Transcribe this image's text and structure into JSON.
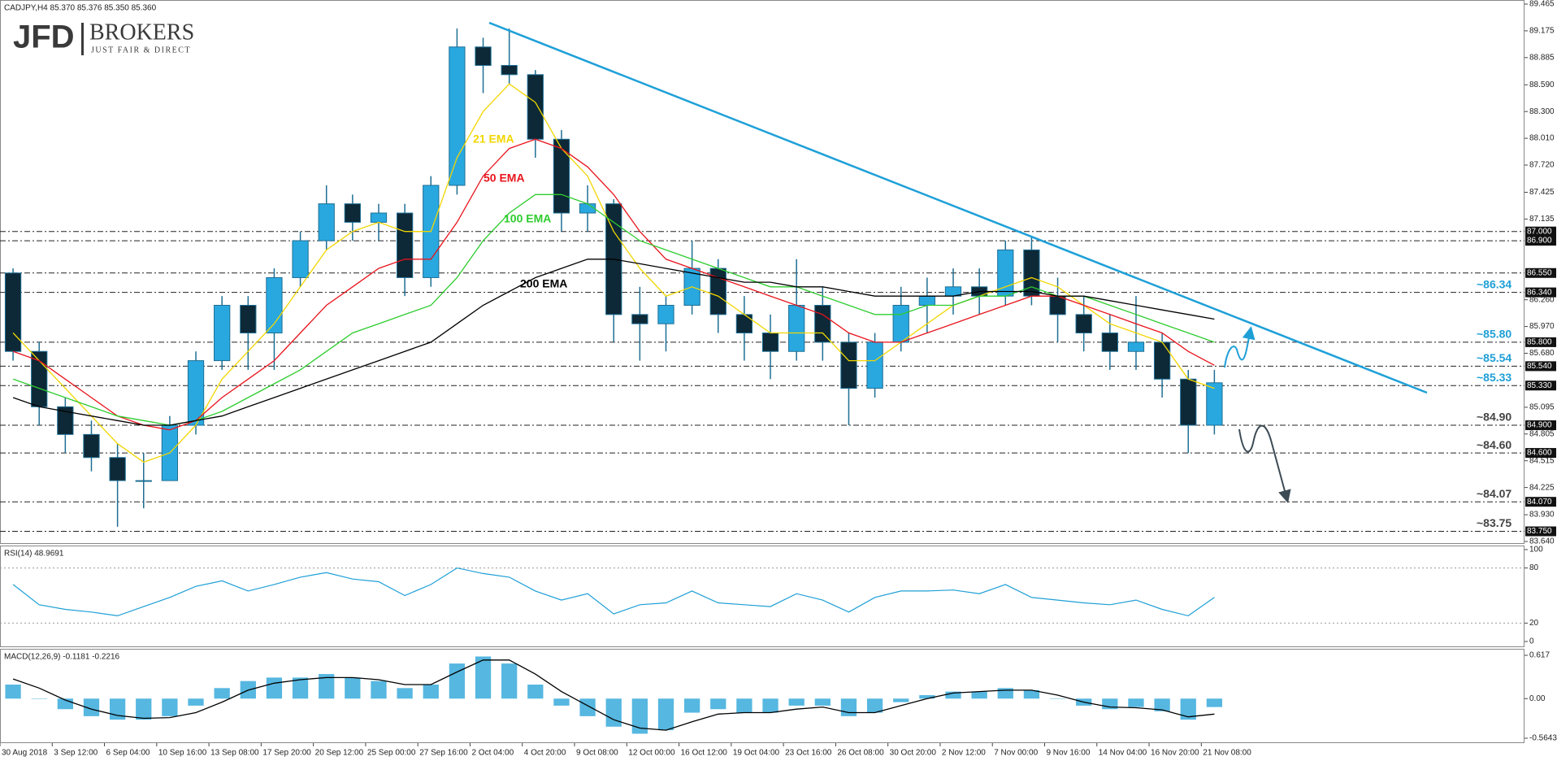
{
  "header": {
    "logo": "JFD",
    "logo_right": "BROKERS",
    "tagline": "JUST FAIR & DIRECT"
  },
  "chart_data": [
    {
      "type": "candlestick",
      "title": "CADJPY,H4  85.370 85.376 85.350 85.360",
      "x": [
        4,
        12,
        20,
        28,
        36,
        44,
        52,
        60,
        68,
        76,
        84,
        92,
        100,
        108,
        116,
        124,
        132,
        140,
        148,
        156,
        164,
        172,
        180,
        188,
        196,
        204,
        212,
        220,
        228,
        236,
        244,
        252,
        260,
        268,
        276,
        284,
        292,
        300,
        308,
        316,
        324,
        332,
        340,
        348,
        356,
        364,
        372
      ],
      "xlim": [
        0,
        467
      ],
      "open": [
        86.55,
        85.7,
        85.1,
        84.8,
        84.55,
        84.3,
        84.3,
        84.9,
        85.6,
        86.2,
        85.9,
        86.5,
        86.9,
        87.3,
        87.1,
        87.2,
        86.5,
        87.5,
        89.0,
        88.8,
        88.7,
        88.0,
        87.2,
        87.3,
        86.1,
        86.0,
        86.2,
        86.6,
        86.1,
        85.9,
        85.7,
        86.2,
        85.8,
        85.3,
        85.8,
        86.2,
        86.3,
        86.4,
        86.3,
        86.8,
        86.3,
        86.1,
        85.9,
        85.7,
        85.8,
        85.4,
        84.9
      ],
      "high": [
        86.6,
        85.8,
        85.2,
        84.95,
        84.7,
        84.6,
        85.0,
        85.7,
        86.3,
        86.3,
        86.6,
        87.0,
        87.5,
        87.4,
        87.3,
        87.3,
        87.6,
        89.2,
        89.1,
        89.2,
        88.75,
        88.1,
        87.5,
        87.35,
        86.4,
        86.3,
        86.9,
        86.7,
        86.3,
        86.1,
        86.7,
        86.4,
        85.9,
        85.9,
        86.4,
        86.5,
        86.6,
        86.6,
        86.9,
        86.95,
        86.5,
        86.3,
        86.1,
        86.3,
        85.9,
        85.5,
        85.5
      ],
      "low": [
        85.6,
        84.9,
        84.6,
        84.4,
        83.8,
        84.0,
        84.3,
        84.8,
        85.5,
        85.5,
        85.5,
        86.4,
        86.8,
        86.9,
        86.9,
        86.3,
        86.4,
        87.4,
        88.5,
        88.6,
        87.8,
        87.0,
        87.0,
        85.8,
        85.6,
        85.7,
        86.1,
        85.9,
        85.6,
        85.4,
        85.6,
        85.6,
        84.9,
        85.2,
        85.7,
        85.9,
        86.1,
        86.1,
        86.2,
        86.2,
        85.8,
        85.7,
        85.5,
        85.5,
        85.2,
        84.6,
        84.8
      ],
      "close": [
        85.7,
        85.1,
        84.8,
        84.55,
        84.3,
        84.3,
        84.9,
        85.6,
        86.2,
        85.9,
        86.5,
        86.9,
        87.3,
        87.1,
        87.2,
        86.5,
        87.5,
        89.0,
        88.8,
        88.7,
        88.0,
        87.2,
        87.3,
        86.1,
        86.0,
        86.2,
        86.6,
        86.1,
        85.9,
        85.7,
        86.2,
        85.8,
        85.3,
        85.8,
        86.2,
        86.3,
        86.4,
        86.3,
        86.8,
        86.3,
        86.1,
        85.9,
        85.7,
        85.8,
        85.4,
        84.9,
        85.36
      ],
      "up_color": "#29a8e0",
      "down_color": "#0d2836",
      "series": [
        {
          "name": "21 EMA",
          "color": "#f2d600",
          "values": [
            85.9,
            85.6,
            85.3,
            85.0,
            84.7,
            84.5,
            84.6,
            84.9,
            85.4,
            85.7,
            86.0,
            86.4,
            86.8,
            87.0,
            87.1,
            87.0,
            87.0,
            87.8,
            88.3,
            88.6,
            88.4,
            87.9,
            87.6,
            87.0,
            86.6,
            86.3,
            86.4,
            86.3,
            86.1,
            85.9,
            85.9,
            85.9,
            85.6,
            85.6,
            85.8,
            86.0,
            86.2,
            86.3,
            86.4,
            86.5,
            86.4,
            86.2,
            86.0,
            85.9,
            85.8,
            85.4,
            85.3
          ]
        },
        {
          "name": "50 EMA",
          "color": "#e8141c",
          "values": [
            85.7,
            85.6,
            85.4,
            85.2,
            85.0,
            84.9,
            84.85,
            84.95,
            85.2,
            85.4,
            85.6,
            85.9,
            86.2,
            86.4,
            86.6,
            86.7,
            86.7,
            87.1,
            87.6,
            87.9,
            88.0,
            87.9,
            87.7,
            87.4,
            87.0,
            86.7,
            86.6,
            86.5,
            86.4,
            86.3,
            86.2,
            86.1,
            85.9,
            85.8,
            85.8,
            85.9,
            86.0,
            86.1,
            86.2,
            86.3,
            86.3,
            86.2,
            86.1,
            86.0,
            85.9,
            85.7,
            85.55
          ]
        },
        {
          "name": "100 EMA",
          "color": "#2ecc2e",
          "values": [
            85.4,
            85.3,
            85.2,
            85.1,
            85.0,
            84.95,
            84.9,
            84.95,
            85.05,
            85.2,
            85.35,
            85.5,
            85.7,
            85.9,
            86.0,
            86.1,
            86.2,
            86.5,
            86.9,
            87.2,
            87.4,
            87.4,
            87.3,
            87.1,
            86.9,
            86.8,
            86.7,
            86.6,
            86.5,
            86.4,
            86.4,
            86.3,
            86.2,
            86.1,
            86.1,
            86.2,
            86.2,
            86.3,
            86.3,
            86.4,
            86.3,
            86.3,
            86.2,
            86.1,
            86.0,
            85.9,
            85.8
          ]
        },
        {
          "name": "200 EMA",
          "color": "#000000",
          "values": [
            85.2,
            85.1,
            85.05,
            85.0,
            84.95,
            84.9,
            84.9,
            84.95,
            85.0,
            85.1,
            85.2,
            85.3,
            85.4,
            85.5,
            85.6,
            85.7,
            85.8,
            86.0,
            86.2,
            86.35,
            86.5,
            86.6,
            86.7,
            86.7,
            86.65,
            86.6,
            86.55,
            86.5,
            86.45,
            86.45,
            86.4,
            86.4,
            86.35,
            86.3,
            86.3,
            86.3,
            86.3,
            86.35,
            86.35,
            86.35,
            86.3,
            86.3,
            86.25,
            86.2,
            86.15,
            86.1,
            86.05
          ]
        }
      ],
      "ylim": [
        83.64,
        89.465
      ],
      "yticks": [
        {
          "value": 89.465,
          "label": "89.465"
        },
        {
          "value": 89.175,
          "label": "89.175"
        },
        {
          "value": 88.885,
          "label": "88.885"
        },
        {
          "value": 88.59,
          "label": "88.590"
        },
        {
          "value": 88.3,
          "label": "88.300"
        },
        {
          "value": 88.01,
          "label": "88.010"
        },
        {
          "value": 87.72,
          "label": "87.720"
        },
        {
          "value": 87.425,
          "label": "87.425"
        },
        {
          "value": 87.135,
          "label": "87.135"
        },
        {
          "value": 86.26,
          "label": "86.260"
        },
        {
          "value": 85.97,
          "label": "85.970"
        },
        {
          "value": 85.68,
          "label": "85.680"
        },
        {
          "value": 85.095,
          "label": "85.095"
        },
        {
          "value": 84.805,
          "label": "84.805"
        },
        {
          "value": 84.515,
          "label": "84.515"
        },
        {
          "value": 84.225,
          "label": "84.225"
        },
        {
          "value": 83.93,
          "label": "83.930"
        },
        {
          "value": 83.64,
          "label": "83.640"
        }
      ],
      "levels": [
        {
          "value": 87.0,
          "label": "87.000"
        },
        {
          "value": 86.9,
          "label": "86.900"
        },
        {
          "value": 86.55,
          "label": "86.550"
        },
        {
          "value": 86.34,
          "label": "86.340",
          "note": "~86.34",
          "note_color": "#1e9fd6"
        },
        {
          "value": 85.8,
          "label": "85.800",
          "note": "~85.80",
          "note_color": "#1e9fd6"
        },
        {
          "value": 85.54,
          "label": "85.540",
          "note": "~85.54",
          "note_color": "#1e9fd6"
        },
        {
          "value": 85.33,
          "label": "85.330",
          "note": "~85.33",
          "note_color": "#1e9fd6"
        },
        {
          "value": 84.9,
          "label": "84.900",
          "note": "~84.90",
          "note_color": "#444444"
        },
        {
          "value": 84.6,
          "label": "84.600",
          "note": "~84.60",
          "note_color": "#444444"
        },
        {
          "value": 84.07,
          "label": "84.070",
          "note": "~84.07",
          "note_color": "#444444"
        },
        {
          "value": 83.75,
          "label": "83.750",
          "note": "~83.75",
          "note_color": "#444444"
        }
      ]
    },
    {
      "type": "line",
      "title": "RSI(14) 48.9691",
      "x": [
        4,
        12,
        20,
        28,
        36,
        44,
        52,
        60,
        68,
        76,
        84,
        92,
        100,
        108,
        116,
        124,
        132,
        140,
        148,
        156,
        164,
        172,
        180,
        188,
        196,
        204,
        212,
        220,
        228,
        236,
        244,
        252,
        260,
        268,
        276,
        284,
        292,
        300,
        308,
        316,
        324,
        332,
        340,
        348,
        356,
        364,
        372
      ],
      "xlim": [
        0,
        467
      ],
      "color": "#1e9fd6",
      "values": [
        62,
        40,
        35,
        32,
        28,
        38,
        48,
        60,
        66,
        55,
        62,
        70,
        75,
        68,
        65,
        50,
        62,
        80,
        74,
        70,
        55,
        45,
        52,
        30,
        40,
        42,
        55,
        42,
        40,
        38,
        52,
        45,
        32,
        48,
        55,
        55,
        56,
        52,
        62,
        48,
        45,
        42,
        40,
        45,
        35,
        28,
        48
      ],
      "ylim": [
        0,
        100
      ],
      "yticks": [
        100,
        80,
        20,
        0
      ],
      "levels": [
        80,
        20
      ]
    },
    {
      "type": "macd",
      "title": "MACD(12,26,9) -0.1181 -0.2216",
      "x": [
        4,
        12,
        20,
        28,
        36,
        44,
        52,
        60,
        68,
        76,
        84,
        92,
        100,
        108,
        116,
        124,
        132,
        140,
        148,
        156,
        164,
        172,
        180,
        188,
        196,
        204,
        212,
        220,
        228,
        236,
        244,
        252,
        260,
        268,
        276,
        284,
        292,
        300,
        308,
        316,
        324,
        332,
        340,
        348,
        356,
        364,
        372
      ],
      "xlim": [
        0,
        467
      ],
      "histogram": {
        "color": "#1e9fd6",
        "values": [
          0.2,
          0.0,
          -0.15,
          -0.25,
          -0.3,
          -0.3,
          -0.25,
          -0.1,
          0.15,
          0.25,
          0.3,
          0.3,
          0.35,
          0.3,
          0.25,
          0.15,
          0.2,
          0.5,
          0.6,
          0.5,
          0.2,
          -0.1,
          -0.25,
          -0.4,
          -0.5,
          -0.45,
          -0.2,
          -0.15,
          -0.2,
          -0.2,
          -0.1,
          -0.1,
          -0.25,
          -0.2,
          -0.05,
          0.05,
          0.1,
          0.1,
          0.15,
          0.12,
          0.0,
          -0.1,
          -0.15,
          -0.12,
          -0.18,
          -0.3,
          -0.12
        ]
      },
      "signal": {
        "color": "#000000",
        "values": [
          0.28,
          0.15,
          -0.02,
          -0.15,
          -0.24,
          -0.28,
          -0.27,
          -0.2,
          -0.05,
          0.12,
          0.22,
          0.27,
          0.3,
          0.3,
          0.27,
          0.2,
          0.2,
          0.38,
          0.55,
          0.55,
          0.35,
          0.1,
          -0.1,
          -0.3,
          -0.42,
          -0.45,
          -0.33,
          -0.22,
          -0.2,
          -0.2,
          -0.15,
          -0.12,
          -0.2,
          -0.2,
          -0.1,
          0.0,
          0.08,
          0.1,
          0.12,
          0.12,
          0.05,
          -0.05,
          -0.12,
          -0.13,
          -0.16,
          -0.26,
          -0.22
        ]
      },
      "ylim": [
        -0.5643,
        0.617
      ],
      "yticks": [
        0.617,
        {
          "value": 0,
          "label": "0.00"
        },
        -0.5643
      ],
      "xticks": [
        {
          "value": 0,
          "label": "30 Aug 2018"
        },
        {
          "value": 16,
          "label": "3 Sep 12:00"
        },
        {
          "value": 32,
          "label": "6 Sep 04:00"
        },
        {
          "value": 48,
          "label": "10 Sep 16:00"
        },
        {
          "value": 64,
          "label": "13 Sep 08:00"
        },
        {
          "value": 80,
          "label": "17 Sep 20:00"
        },
        {
          "value": 96,
          "label": "20 Sep 12:00"
        },
        {
          "value": 112,
          "label": "25 Sep 00:00"
        },
        {
          "value": 128,
          "label": "27 Sep 16:00"
        },
        {
          "value": 144,
          "label": "2 Oct 04:00"
        },
        {
          "value": 160,
          "label": "4 Oct 20:00"
        },
        {
          "value": 176,
          "label": "9 Oct 08:00"
        },
        {
          "value": 192,
          "label": "12 Oct 00:00"
        },
        {
          "value": 208,
          "label": "16 Oct 12:00"
        },
        {
          "value": 224,
          "label": "19 Oct 04:00"
        },
        {
          "value": 240,
          "label": "23 Oct 16:00"
        },
        {
          "value": 256,
          "label": "26 Oct 08:00"
        },
        {
          "value": 272,
          "label": "30 Oct 20:00"
        },
        {
          "value": 288,
          "label": "2 Nov 12:00"
        },
        {
          "value": 304,
          "label": "7 Nov 00:00"
        },
        {
          "value": 320,
          "label": "9 Nov 16:00"
        },
        {
          "value": 336,
          "label": "14 Nov 04:00"
        },
        {
          "value": 352,
          "label": "16 Nov 20:00"
        },
        {
          "value": 368,
          "label": "21 Nov 08:00"
        }
      ]
    }
  ]
}
